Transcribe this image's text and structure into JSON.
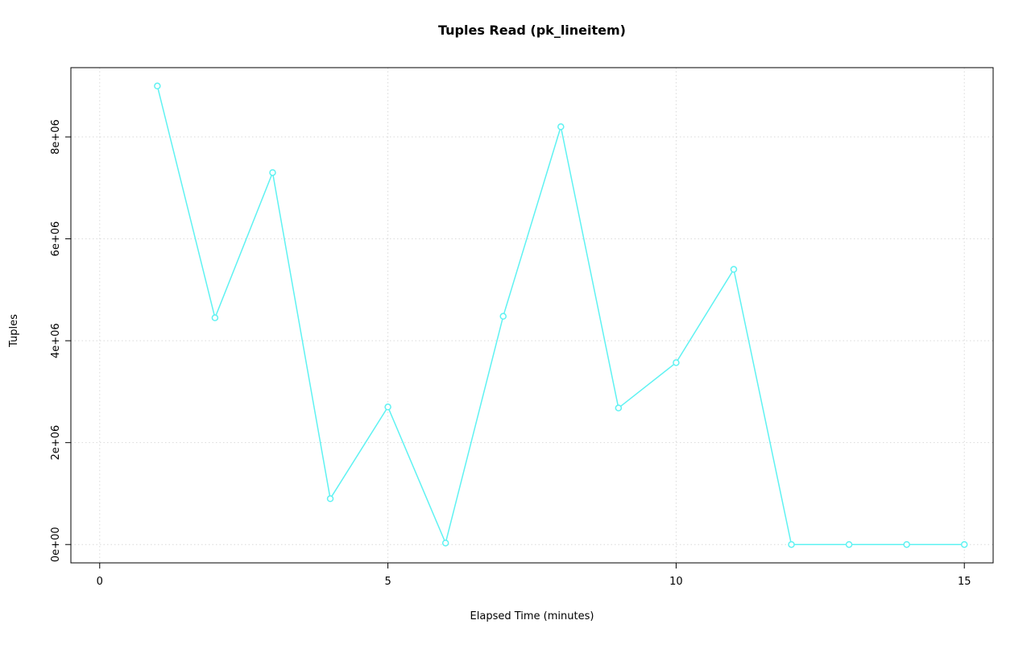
{
  "chart_data": {
    "type": "line",
    "title": "Tuples Read (pk_lineitem)",
    "xlabel": "Elapsed Time (minutes)",
    "ylabel": "Tuples",
    "x": [
      1,
      2,
      3,
      4,
      5,
      6,
      7,
      8,
      9,
      10,
      11,
      12,
      13,
      14,
      15
    ],
    "y": [
      9000000,
      4450000,
      7300000,
      900000,
      2700000,
      30000,
      4480000,
      8200000,
      2680000,
      3570000,
      5400000,
      0,
      0,
      0,
      0
    ],
    "xlim": [
      -0.5,
      15.5
    ],
    "ylim": [
      -360000,
      9360000
    ],
    "xticks": [
      0,
      5,
      10,
      15
    ],
    "xtick_labels": [
      "0",
      "5",
      "10",
      "15"
    ],
    "yticks": [
      0,
      2000000,
      4000000,
      6000000,
      8000000
    ],
    "ytick_labels": [
      "0e+00",
      "2e+06",
      "4e+06",
      "6e+06",
      "8e+06"
    ],
    "grid": true,
    "legend": "none",
    "colors": {
      "line": "#5ff2f2",
      "point_stroke": "#5ff2f2",
      "point_fill": "#ffffff",
      "grid": "#d9d9d9",
      "box": "#000000"
    }
  }
}
